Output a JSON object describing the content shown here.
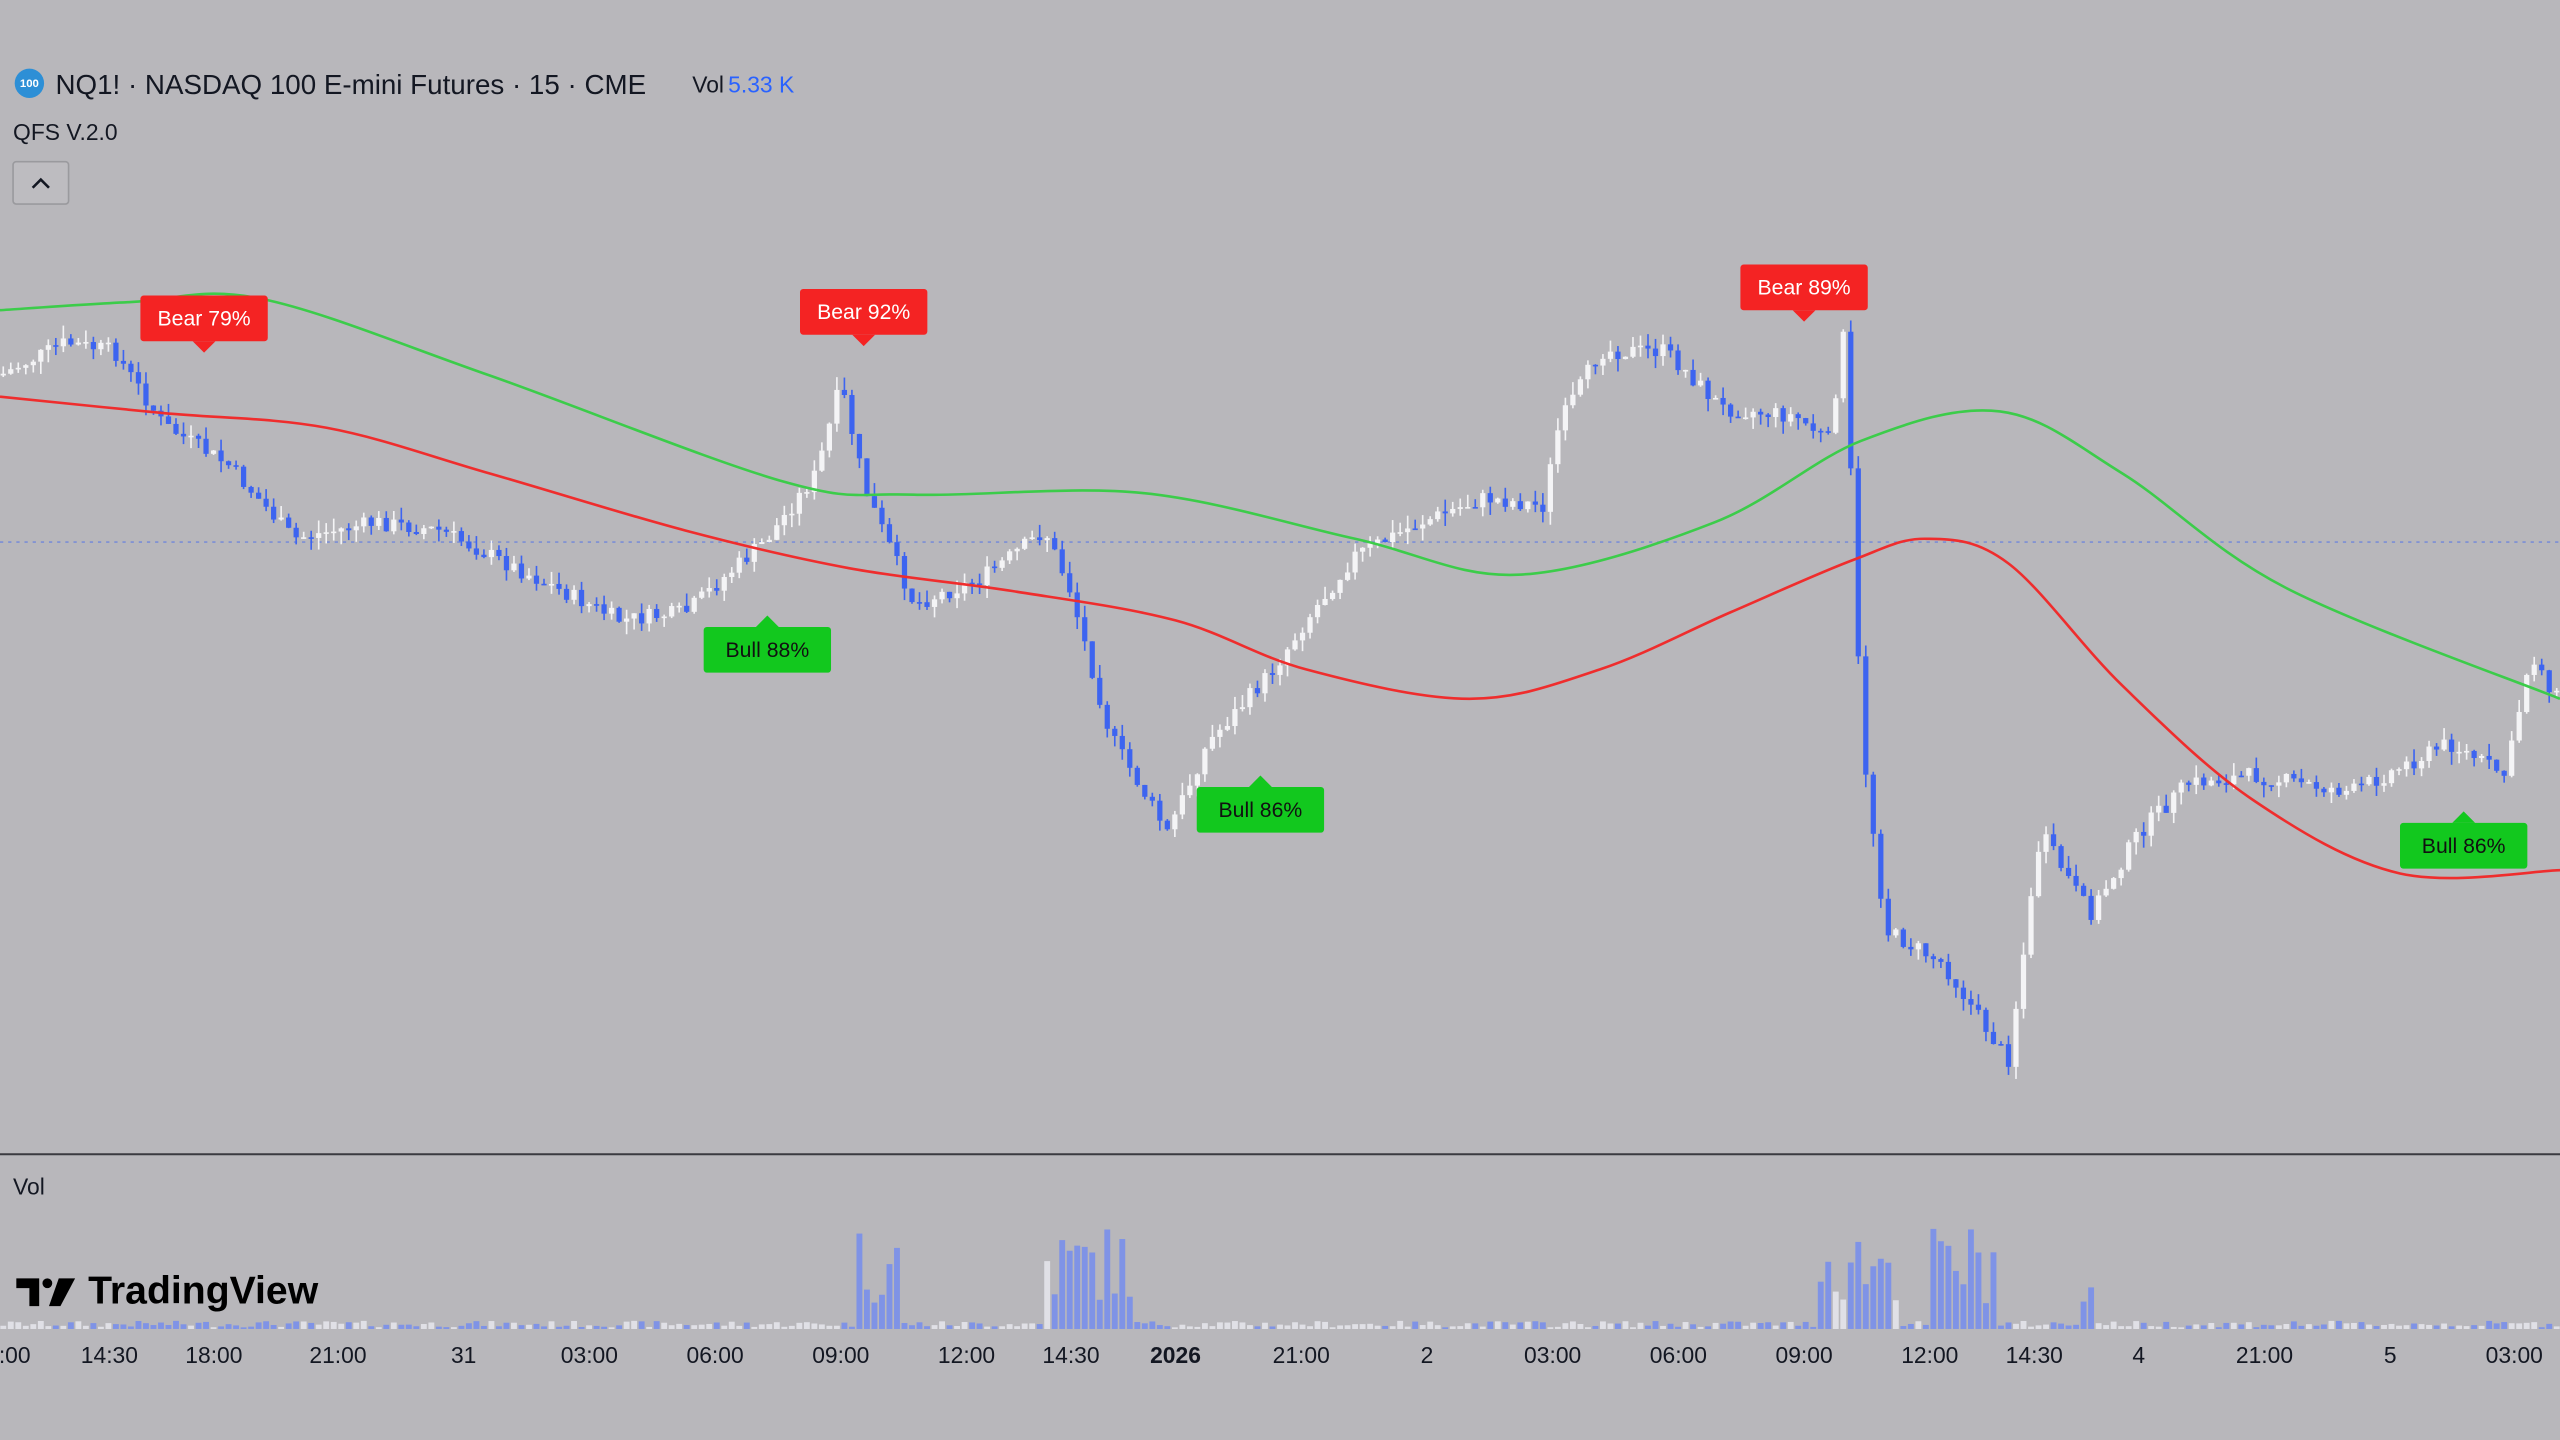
{
  "header": {
    "badge": "100",
    "symbol": "NQ1! · NASDAQ 100 E-mini Futures · 15 · CME",
    "vol_label": "Vol",
    "vol_value": "5.33 K",
    "indicator": "QFS V.2.0"
  },
  "signals": [
    {
      "label": "Bear 79%"
    },
    {
      "label": "Bear 92%"
    },
    {
      "label": "Bear 89%"
    },
    {
      "label": "Bull 88%"
    },
    {
      "label": "Bull 86%"
    },
    {
      "label": "Bull 86%"
    }
  ],
  "volume_pane": {
    "label": "Vol"
  },
  "logo": "TradingView",
  "time_axis": [
    ":00",
    "14:30",
    "18:00",
    "21:00",
    "31",
    "03:00",
    "06:00",
    "09:00",
    "12:00",
    "14:30",
    "2026",
    "21:00",
    "2",
    "03:00",
    "06:00",
    "09:00",
    "12:00",
    "14:30",
    "4",
    "21:00",
    "5",
    "03:00"
  ]
}
